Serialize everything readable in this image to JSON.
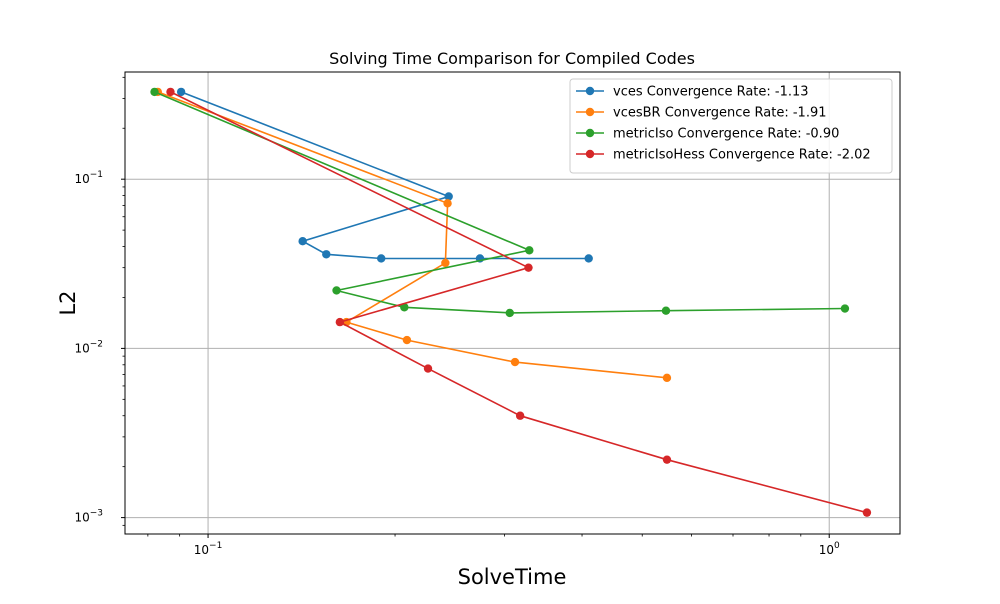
{
  "chart_data": {
    "type": "line",
    "title": "Solving Time Comparison for Compiled Codes",
    "xlabel": "SolveTime",
    "ylabel": "L2",
    "xscale": "log",
    "yscale": "log",
    "xlim": [
      0.0735,
      1.3
    ],
    "ylim": [
      0.0008,
      0.43
    ],
    "grid": true,
    "legend_position": "top-right",
    "x_ticks": [
      {
        "value": 0.1,
        "base": "10",
        "exp": "−1"
      },
      {
        "value": 1.0,
        "base": "10",
        "exp": "0"
      }
    ],
    "y_ticks": [
      {
        "value": 0.001,
        "base": "10",
        "exp": "−3"
      },
      {
        "value": 0.01,
        "base": "10",
        "exp": "−2"
      },
      {
        "value": 0.1,
        "base": "10",
        "exp": "−1"
      }
    ],
    "series": [
      {
        "name": "vces Convergence Rate: -1.13",
        "color": "#1f77b4",
        "x": [
          0.0905,
          0.244,
          0.142,
          0.155,
          0.19,
          0.274,
          0.41
        ],
        "y": [
          0.328,
          0.079,
          0.043,
          0.036,
          0.034,
          0.034,
          0.034
        ]
      },
      {
        "name": "vcesBR Convergence Rate: -1.91",
        "color": "#ff7f0e",
        "x": [
          0.083,
          0.243,
          0.241,
          0.167,
          0.209,
          0.312,
          0.548
        ],
        "y": [
          0.328,
          0.072,
          0.032,
          0.0143,
          0.0112,
          0.0083,
          0.0067
        ]
      },
      {
        "name": "metricIso Convergence Rate: -0.90",
        "color": "#2ca02c",
        "x": [
          0.082,
          0.329,
          0.161,
          0.207,
          0.306,
          0.546,
          1.06
        ],
        "y": [
          0.328,
          0.038,
          0.022,
          0.0175,
          0.0162,
          0.0167,
          0.0172
        ]
      },
      {
        "name": "metricIsoHess Convergence Rate: -2.02",
        "color": "#d62728",
        "x": [
          0.087,
          0.328,
          0.163,
          0.226,
          0.318,
          0.548,
          1.15
        ],
        "y": [
          0.328,
          0.03,
          0.0143,
          0.0076,
          0.004,
          0.0022,
          0.00107
        ]
      }
    ]
  }
}
